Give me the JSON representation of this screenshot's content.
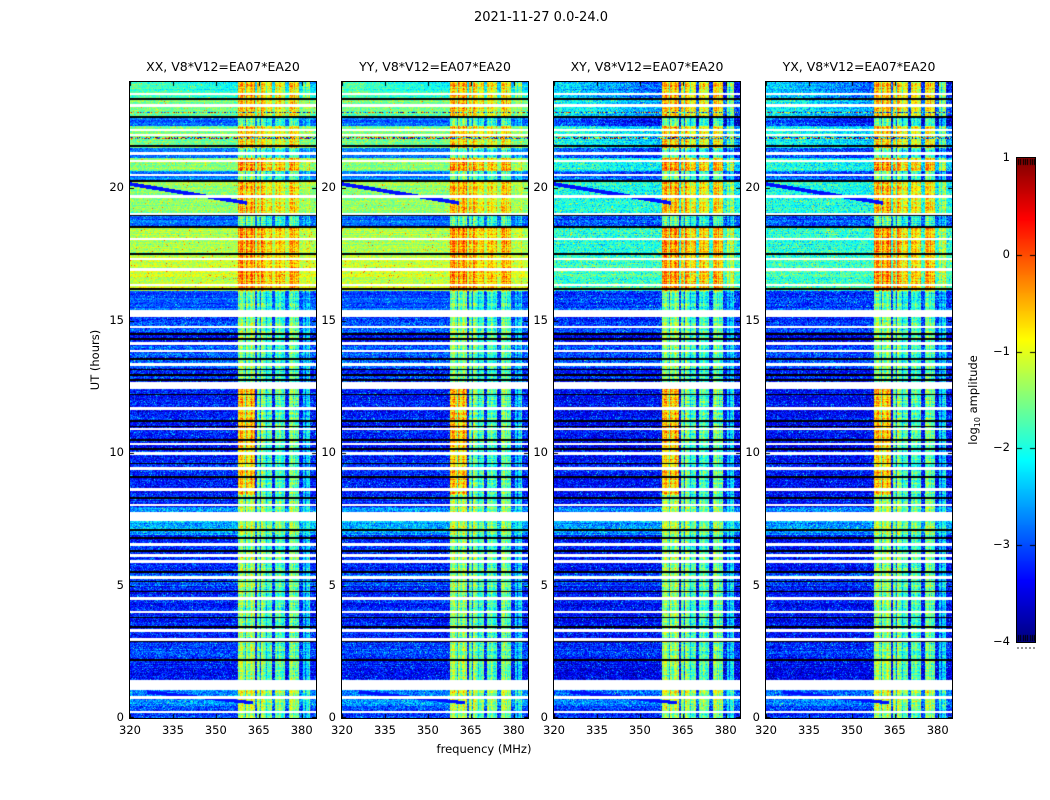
{
  "chart_data": {
    "type": "heatmap",
    "title": "2021-11-27 0.0-24.0",
    "xlabel": "frequency (MHz)",
    "ylabel": "UT (hours)",
    "x_range": [
      320,
      385
    ],
    "x_ticks": [
      320,
      335,
      350,
      365,
      380
    ],
    "y_range": [
      0,
      24
    ],
    "y_ticks": [
      0,
      5,
      10,
      15,
      20
    ],
    "grid": false,
    "panels": [
      {
        "label": "XX, V8*V12=EA07*EA20",
        "pol": "XX",
        "group": "parallel"
      },
      {
        "label": "YY, V8*V12=EA07*EA20",
        "pol": "YY",
        "group": "parallel"
      },
      {
        "label": "XY, V8*V12=EA07*EA20",
        "pol": "XY",
        "group": "cross"
      },
      {
        "label": "YX, V8*V12=EA07*EA20",
        "pol": "YX",
        "group": "cross"
      }
    ],
    "colorbar": {
      "label_prefix": "log",
      "label_sub": "10",
      "label_suffix": " amplitude",
      "ticks": [
        "1",
        "0",
        "−1",
        "−2",
        "−3",
        "−4"
      ],
      "tick_values": [
        1,
        0,
        -1,
        -2,
        -3,
        -4
      ],
      "range": [
        -4,
        1
      ],
      "colormap": "jet"
    },
    "model": {
      "night_end": 15.35,
      "night_base_parallel": -3.28,
      "night_bands": [
        [
          0.0,
          0.45,
          -3.05
        ],
        [
          0.45,
          1.05,
          -2.7
        ],
        [
          2.3,
          3.0,
          -3.05
        ],
        [
          5.0,
          5.55,
          -3.0
        ],
        [
          6.9,
          7.95,
          -2.6
        ],
        [
          9.2,
          9.7,
          -3.1
        ],
        [
          13.2,
          14.05,
          -2.85
        ],
        [
          14.55,
          15.0,
          -2.95
        ]
      ],
      "day_segments": [
        [
          15.35,
          16.1,
          -2.95,
          -3.05
        ],
        [
          16.1,
          17.5,
          -1.15,
          -1.85
        ],
        [
          17.5,
          18.55,
          -1.3,
          -1.95
        ],
        [
          18.55,
          18.95,
          -2.85,
          -2.95
        ],
        [
          18.95,
          20.3,
          -1.5,
          -2.05
        ],
        [
          20.3,
          20.65,
          -2.8,
          -2.9
        ],
        [
          20.65,
          21.15,
          -1.45,
          -1.95
        ],
        [
          21.15,
          21.5,
          -2.85,
          -2.95
        ],
        [
          21.5,
          22.35,
          -1.55,
          -2.05
        ],
        [
          22.35,
          22.7,
          -2.8,
          -2.9
        ],
        [
          22.7,
          23.3,
          -1.55,
          -2.1
        ],
        [
          23.3,
          24.01,
          -1.75,
          -2.35
        ]
      ],
      "white_gaps": [
        [
          0.22,
          0.05
        ],
        [
          0.78,
          0.05
        ],
        [
          1.25,
          0.18
        ],
        [
          2.95,
          0.06
        ],
        [
          3.3,
          0.05
        ],
        [
          4.0,
          0.05
        ],
        [
          4.5,
          0.05
        ],
        [
          5.3,
          0.04
        ],
        [
          5.9,
          0.05
        ],
        [
          6.12,
          0.05
        ],
        [
          6.55,
          0.05
        ],
        [
          7.6,
          0.16
        ],
        [
          8.05,
          0.04
        ],
        [
          8.62,
          0.05
        ],
        [
          9.42,
          0.05
        ],
        [
          9.97,
          0.05
        ],
        [
          10.35,
          0.04
        ],
        [
          10.9,
          0.05
        ],
        [
          11.67,
          0.05
        ],
        [
          12.55,
          0.14
        ],
        [
          13.35,
          0.05
        ],
        [
          13.85,
          0.04
        ],
        [
          14.12,
          0.05
        ],
        [
          14.75,
          0.04
        ],
        [
          15.28,
          0.13
        ],
        [
          16.35,
          0.04
        ],
        [
          16.92,
          0.05
        ],
        [
          17.32,
          0.05
        ],
        [
          18.07,
          0.05
        ],
        [
          19.02,
          0.04
        ],
        [
          19.67,
          0.05
        ],
        [
          20.5,
          0.04
        ],
        [
          21.02,
          0.05
        ],
        [
          21.3,
          0.04
        ],
        [
          22.0,
          0.04
        ],
        [
          22.18,
          0.04
        ],
        [
          23.12,
          0.05
        ],
        [
          23.55,
          0.04
        ]
      ],
      "black_lines": [
        [
          2.2,
          0.035
        ],
        [
          2.9,
          0.03
        ],
        [
          3.45,
          0.035
        ],
        [
          3.8,
          0.03
        ],
        [
          4.78,
          0.03
        ],
        [
          5.15,
          0.03
        ],
        [
          5.5,
          0.03
        ],
        [
          6.3,
          0.03
        ],
        [
          6.8,
          0.03
        ],
        [
          7.1,
          0.03
        ],
        [
          8.3,
          0.03
        ],
        [
          9.1,
          0.03
        ],
        [
          9.6,
          0.03
        ],
        [
          10.15,
          0.03
        ],
        [
          10.5,
          0.03
        ],
        [
          11.0,
          0.03
        ],
        [
          11.2,
          0.03
        ],
        [
          12.2,
          0.03
        ],
        [
          12.75,
          0.03
        ],
        [
          12.95,
          0.03
        ],
        [
          13.15,
          0.03
        ],
        [
          13.55,
          0.03
        ],
        [
          14.3,
          0.03
        ],
        [
          14.5,
          0.03
        ],
        [
          16.2,
          0.04
        ],
        [
          17.5,
          0.04
        ],
        [
          18.52,
          0.04
        ],
        [
          18.98,
          0.04
        ],
        [
          20.28,
          0.04
        ],
        [
          21.58,
          0.04
        ],
        [
          22.68,
          0.04
        ],
        [
          23.35,
          0.04
        ]
      ],
      "rfi_subbands": [
        [
          357.8,
          363.6,
          1.0
        ],
        [
          364.5,
          369.6,
          0.93
        ],
        [
          370.5,
          374.2,
          0.78
        ],
        [
          375.4,
          379.2,
          0.82
        ],
        [
          380.4,
          382.8,
          0.6
        ]
      ],
      "rfi_night_base": -1.4,
      "rfi_night_bright": [
        [
          0.3,
          1.05,
          -1.0
        ],
        [
          6.9,
          7.95,
          -1.15
        ]
      ],
      "rfi_night_sb0": [
        8.4,
        12.6,
        -0.6
      ],
      "rfi_day_base": -0.55,
      "rfi_day_strong": [
        [
          16.1,
          18.55,
          -0.3
        ],
        [
          20.65,
          21.15,
          -0.35
        ]
      ],
      "rfi_dim_level": -1.55,
      "diag_streaks": [
        [
          320,
          361,
          20.15,
          -0.0175,
          0.07
        ],
        [
          326,
          363,
          0.98,
          -0.011,
          0.06
        ]
      ],
      "speckle_rows": [
        [
          22.85,
          0.03
        ],
        [
          21.88,
          0.03
        ]
      ],
      "noise_night": 0.3,
      "noise_day_parallel": 0.2,
      "noise_day_cross": 0.3
    }
  }
}
